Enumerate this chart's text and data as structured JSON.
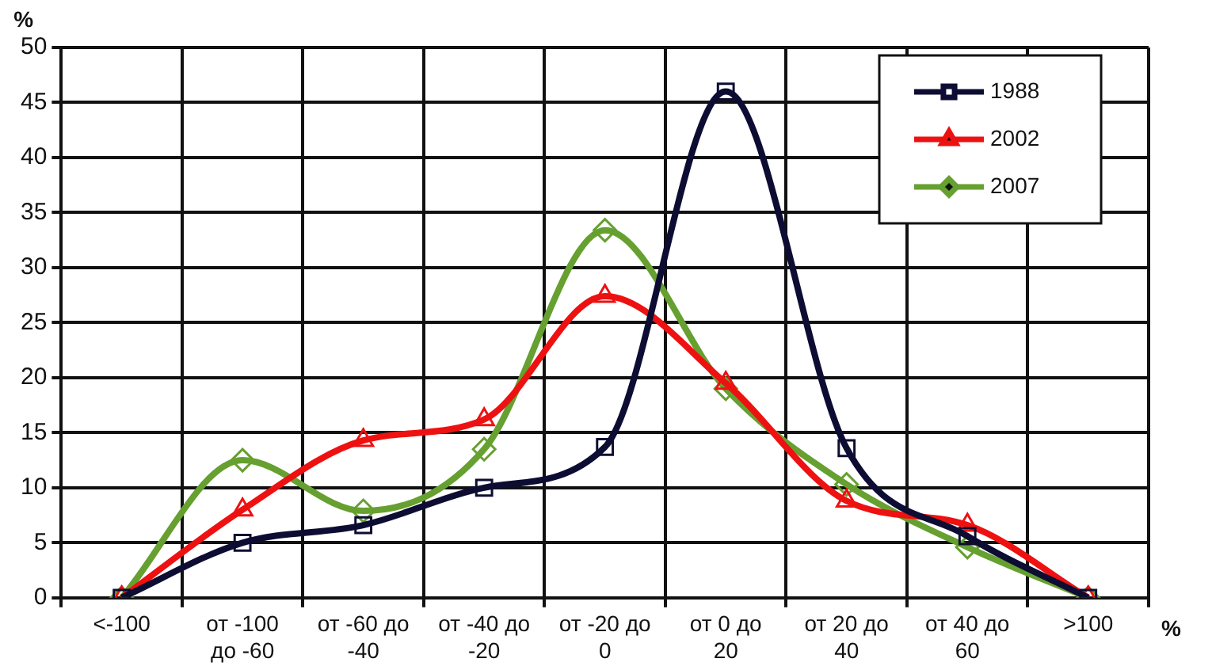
{
  "chart_data": {
    "type": "line",
    "xlabel": "%",
    "ylabel": "%",
    "categories": [
      "<-100",
      "от -100 до -60",
      "от -60 до -40",
      "от -40 до -20",
      "от -20 до 0",
      "от 0 до 20",
      "от 20 до 40",
      "от 40 до 60",
      ">100"
    ],
    "series": [
      {
        "name": "1988",
        "color": "#0d0d33",
        "marker": "square",
        "values": [
          0,
          5,
          6.6,
          10,
          13.7,
          46,
          13.6,
          5.6,
          0
        ]
      },
      {
        "name": "2002",
        "color": "#ee1111",
        "marker": "triangle",
        "values": [
          0,
          8,
          14.3,
          16.2,
          27.4,
          19.5,
          8.8,
          6.6,
          0
        ]
      },
      {
        "name": "2007",
        "color": "#66a030",
        "marker": "diamond",
        "values": [
          0,
          12.5,
          7.9,
          13.5,
          33.4,
          19,
          10.3,
          4.6,
          0
        ]
      }
    ],
    "ylim": [
      0,
      50
    ],
    "yticks": [
      0,
      5,
      10,
      15,
      20,
      25,
      30,
      35,
      40,
      45,
      50
    ],
    "grid": true,
    "legend": "top right"
  }
}
